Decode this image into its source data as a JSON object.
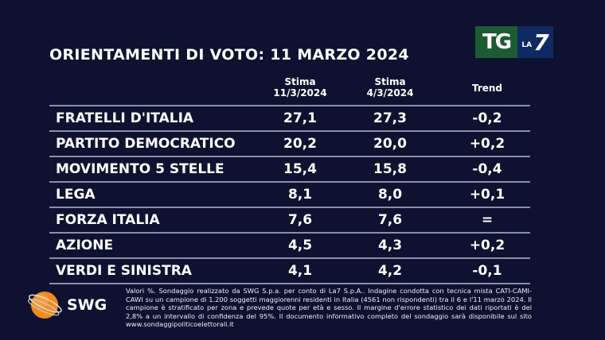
{
  "title": "ORIENTAMENTI DI VOTO: 11 MARZO 2024",
  "broadcaster_logo": {
    "tg": "TG",
    "la": "LA",
    "seven": "7"
  },
  "columns": [
    {
      "line1": "Stima",
      "line2": "11/3/2024"
    },
    {
      "line1": "Stima",
      "line2": "4/3/2024"
    },
    {
      "line1": "Trend",
      "line2": ""
    }
  ],
  "rows": [
    {
      "party": "FRATELLI D'ITALIA",
      "current": "27,1",
      "previous": "27,3",
      "trend": "-0,2"
    },
    {
      "party": "PARTITO DEMOCRATICO",
      "current": "20,2",
      "previous": "20,0",
      "trend": "+0,2"
    },
    {
      "party": "MOVIMENTO 5 STELLE",
      "current": "15,4",
      "previous": "15,8",
      "trend": "-0,4"
    },
    {
      "party": "LEGA",
      "current": "8,1",
      "previous": "8,0",
      "trend": "+0,1"
    },
    {
      "party": "FORZA ITALIA",
      "current": "7,6",
      "previous": "7,6",
      "trend": "="
    },
    {
      "party": "AZIONE",
      "current": "4,5",
      "previous": "4,3",
      "trend": "+0,2"
    },
    {
      "party": "VERDI E SINISTRA",
      "current": "4,1",
      "previous": "4,2",
      "trend": "-0,1"
    }
  ],
  "footnote": "Valori %. Sondaggio realizzato da SWG S.p.a. per conto di La7 S.p.A.. Indagine condotta con tecnica mista CATI-CAMI-CAWI su un campione di 1.200 soggetti maggiorenni residenti in Italia (4561 non rispondenti) tra il 6 e l'11 marzo 2024. Il campione è stratificato per zona e prevede quote per età e sesso. Il margine d'errore statistico dei dati riportati è del 2,8% a un intervallo di confidenza del 95%. Il documento informativo completo del sondaggio sarà disponibile sul sito www.sondaggipoliticoelettorali.it",
  "pollster_logo": "SWG",
  "colors": {
    "background": "#0e1230",
    "tg_green": "#1d5b30",
    "la7_blue": "#0f2a63",
    "swg_orange": "#f28a1e"
  }
}
